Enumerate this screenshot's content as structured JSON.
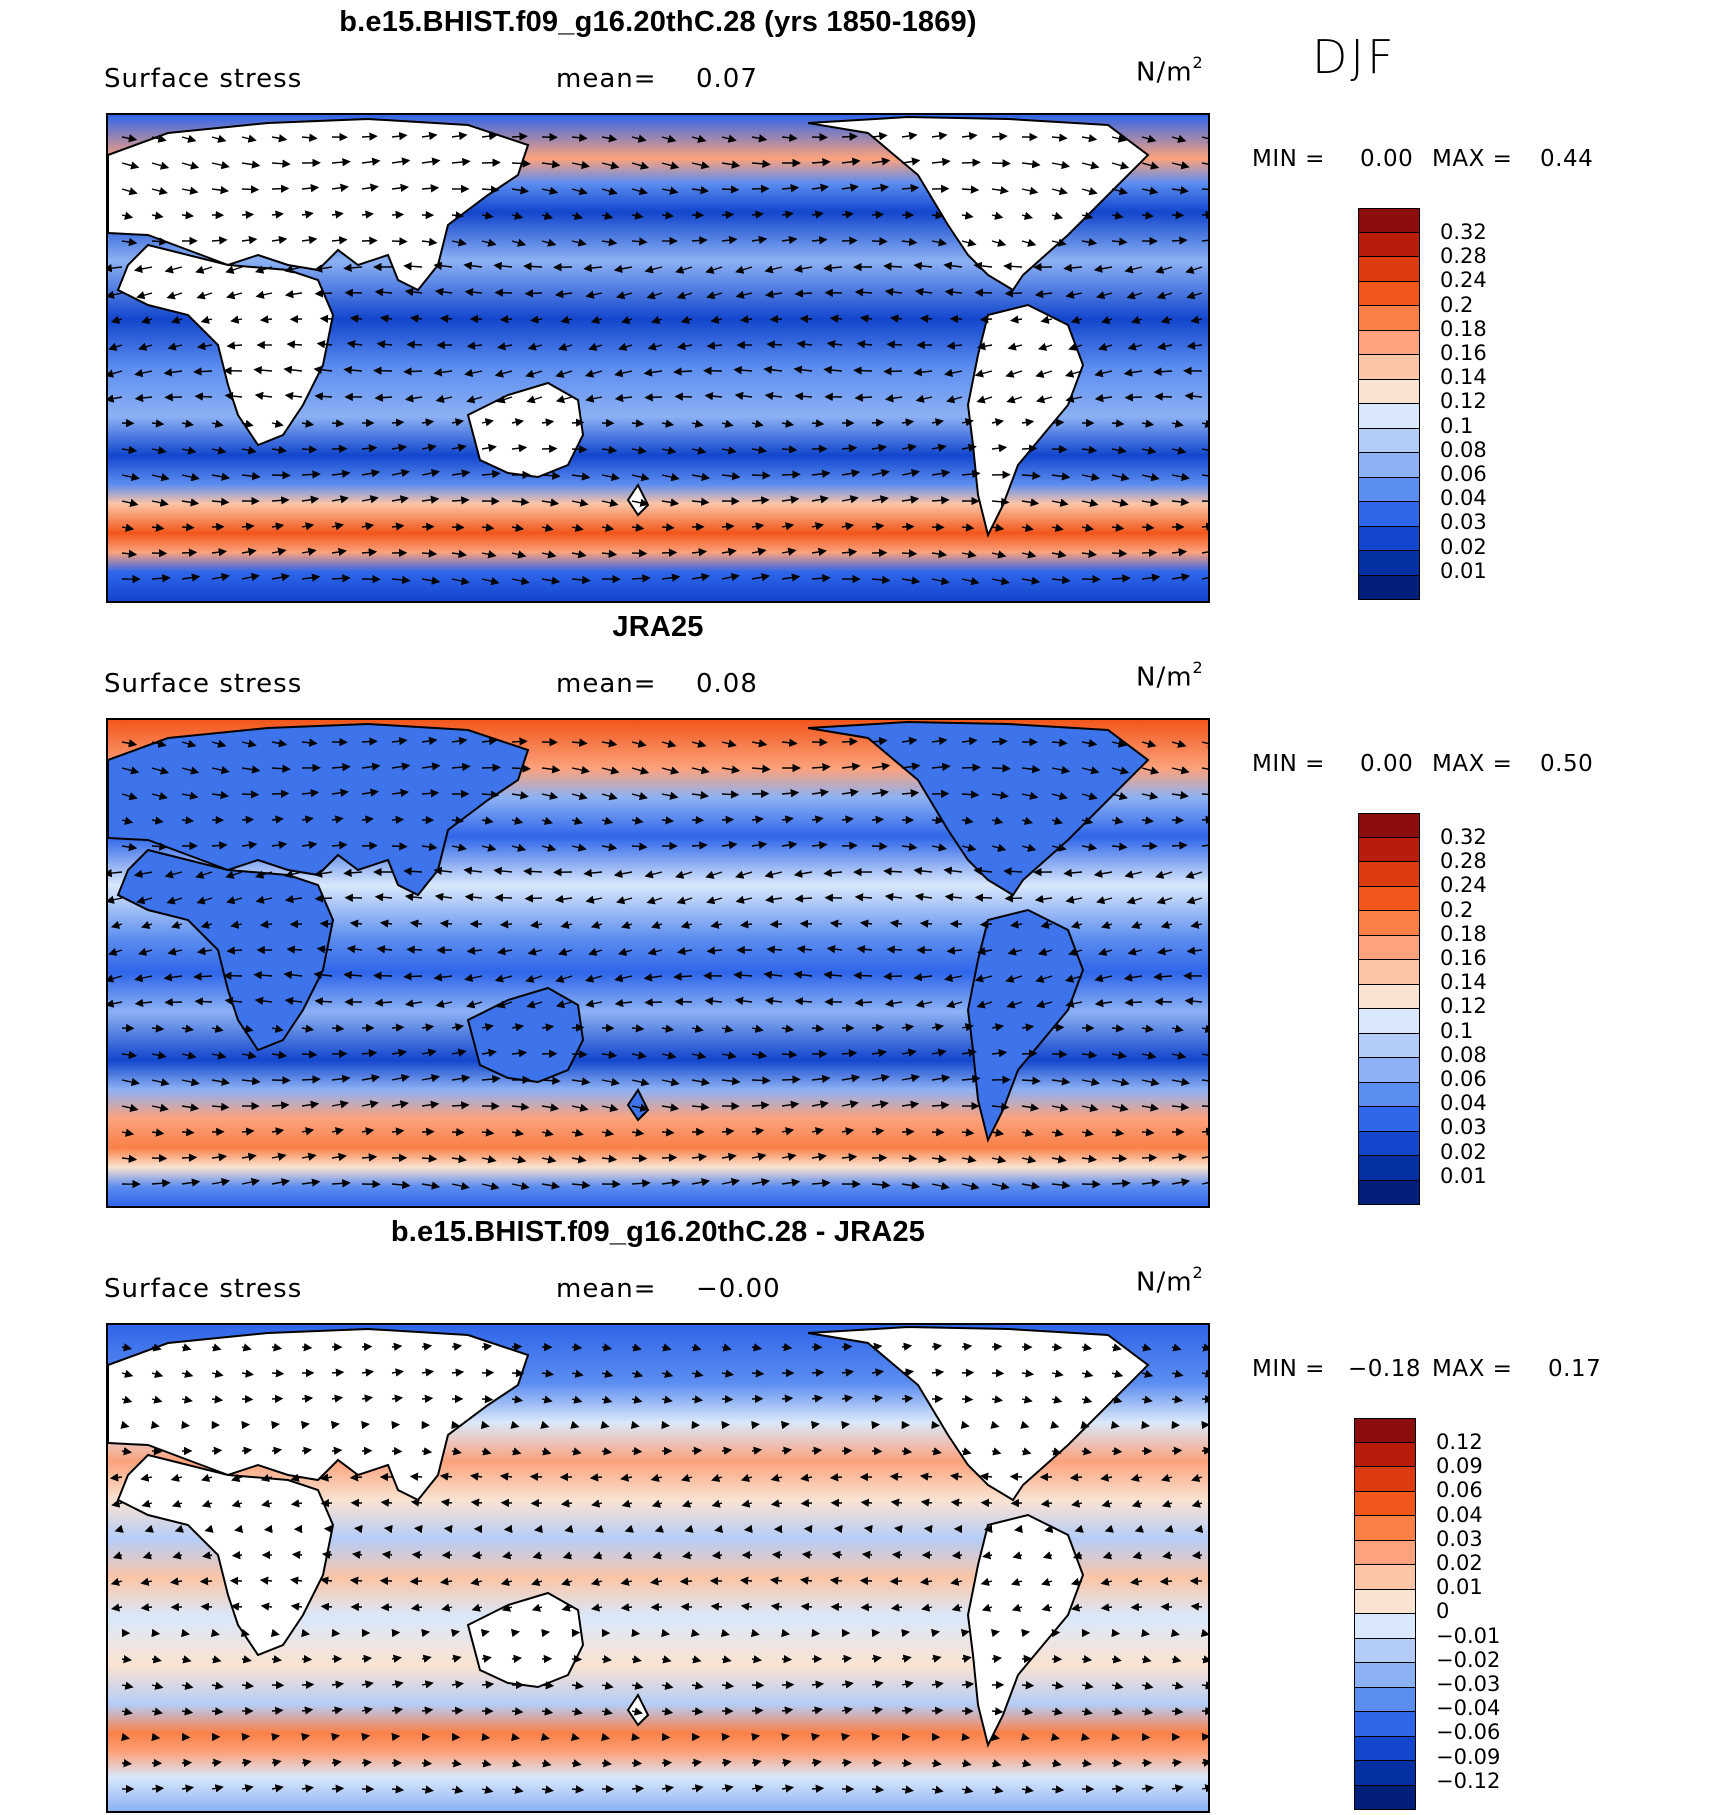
{
  "season": "DJF",
  "panels": [
    {
      "title": "b.e15.BHIST.f09_g16.20thC.28 (yrs 1850-1869)",
      "variable": "Surface stress",
      "mean_label": "mean=",
      "mean_value": "0.07",
      "units": "N/m",
      "units_exp": "2",
      "min_label": "MIN =",
      "min_value": "0.00",
      "max_label": "MAX =",
      "max_value": "0.44",
      "colorbar": {
        "labels": [
          "0.32",
          "0.28",
          "0.24",
          "0.2",
          "0.18",
          "0.16",
          "0.14",
          "0.12",
          "0.1",
          "0.08",
          "0.06",
          "0.04",
          "0.03",
          "0.02",
          "0.01"
        ],
        "colors": [
          "#8c0d0d",
          "#b81d0b",
          "#dc3a10",
          "#f2561b",
          "#fa8048",
          "#fca27c",
          "#fcc5a6",
          "#fbe3d1",
          "#d9e8fb",
          "#b4cdf8",
          "#8cb1f4",
          "#5c8df0",
          "#2f66ea",
          "#1246cd",
          "#0530a2",
          "#02207a"
        ]
      }
    },
    {
      "title": "JRA25",
      "variable": "Surface stress",
      "mean_label": "mean=",
      "mean_value": "0.08",
      "units": "N/m",
      "units_exp": "2",
      "min_label": "MIN =",
      "min_value": "0.00",
      "max_label": "MAX =",
      "max_value": "0.50",
      "colorbar": {
        "labels": [
          "0.32",
          "0.28",
          "0.24",
          "0.2",
          "0.18",
          "0.16",
          "0.14",
          "0.12",
          "0.1",
          "0.08",
          "0.06",
          "0.04",
          "0.03",
          "0.02",
          "0.01"
        ],
        "colors": [
          "#8c0d0d",
          "#b81d0b",
          "#dc3a10",
          "#f2561b",
          "#fa8048",
          "#fca27c",
          "#fcc5a6",
          "#fbe3d1",
          "#d9e8fb",
          "#b4cdf8",
          "#8cb1f4",
          "#5c8df0",
          "#2f66ea",
          "#1246cd",
          "#0530a2",
          "#02207a"
        ]
      }
    },
    {
      "title": "b.e15.BHIST.f09_g16.20thC.28 - JRA25",
      "variable": "Surface stress",
      "mean_label": "mean=",
      "mean_value": "−0.00",
      "units": "N/m",
      "units_exp": "2",
      "min_label": "MIN =",
      "min_value": "−0.18",
      "max_label": "MAX =",
      "max_value": "0.17",
      "colorbar": {
        "labels": [
          "0.12",
          "0.09",
          "0.06",
          "0.04",
          "0.03",
          "0.02",
          "0.01",
          "0",
          "−0.01",
          "−0.02",
          "−0.03",
          "−0.04",
          "−0.06",
          "−0.09",
          "−0.12"
        ],
        "colors": [
          "#8c0d0d",
          "#b81d0b",
          "#dc3a10",
          "#f2561b",
          "#fa8048",
          "#fca27c",
          "#fcc5a6",
          "#fbe3d1",
          "#d9e8fb",
          "#b4cdf8",
          "#8cb1f4",
          "#5c8df0",
          "#2f66ea",
          "#1246cd",
          "#0530a2",
          "#02207a"
        ]
      }
    }
  ]
}
